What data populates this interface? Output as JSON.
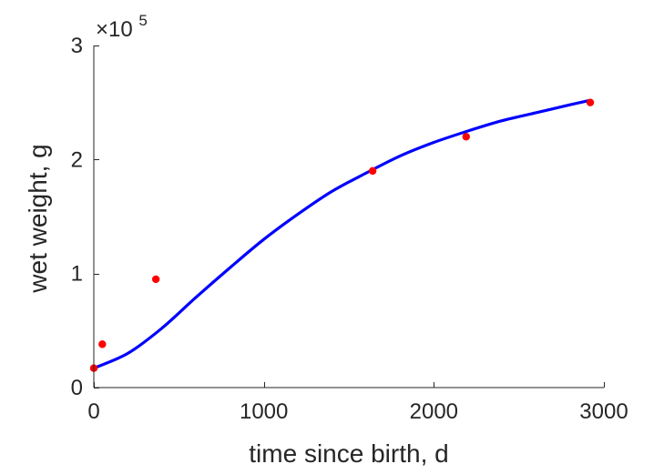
{
  "chart_data": {
    "type": "scatter",
    "xlabel": "time since birth, d",
    "ylabel": "wet weight, g",
    "xlim": [
      0,
      3000
    ],
    "ylim": [
      0,
      300000
    ],
    "x_ticks": [
      0,
      1000,
      2000,
      3000
    ],
    "y_ticks": [
      0,
      100000,
      200000,
      300000
    ],
    "x_tick_labels": [
      "0",
      "1000",
      "2000",
      "3000"
    ],
    "y_tick_labels": [
      "0",
      "1",
      "2",
      "3"
    ],
    "y_multiplier": {
      "base": "×10",
      "exponent": "5"
    },
    "grid": false,
    "series": [
      {
        "kind": "points",
        "color": "#ff0000",
        "x": [
          0,
          50,
          365,
          1640,
          2190,
          2920
        ],
        "y": [
          17000,
          38000,
          95000,
          190000,
          220000,
          250000
        ]
      },
      {
        "kind": "line",
        "color": "#0000ff",
        "x": [
          0,
          200,
          400,
          600,
          800,
          1000,
          1200,
          1400,
          1600,
          1800,
          2000,
          2200,
          2400,
          2600,
          2800,
          2920
        ],
        "y": [
          17000,
          30000,
          52000,
          79000,
          105000,
          130000,
          152000,
          172000,
          188000,
          203000,
          215000,
          225000,
          234000,
          241000,
          248000,
          252000
        ]
      }
    ]
  }
}
